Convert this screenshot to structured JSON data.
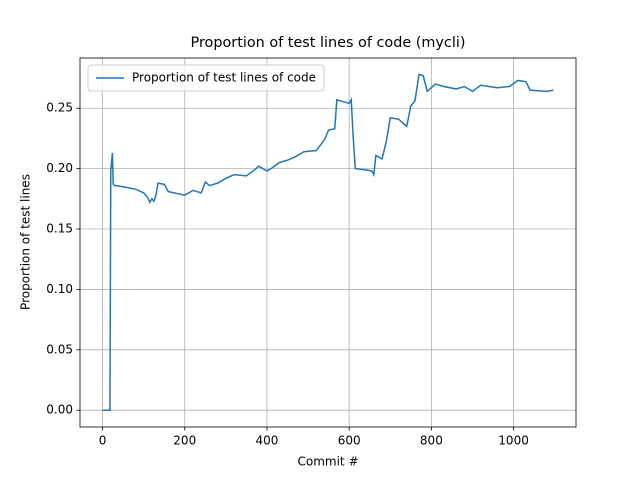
{
  "chart_data": {
    "type": "line",
    "title": "Proportion of test lines of code (mycli)",
    "x_label": "Commit #",
    "y_label": "Proportion of test lines",
    "x": [
      0,
      18,
      20,
      24,
      26,
      30,
      50,
      80,
      100,
      110,
      115,
      120,
      125,
      130,
      135,
      150,
      160,
      200,
      220,
      240,
      250,
      260,
      280,
      300,
      320,
      350,
      370,
      380,
      395,
      400,
      410,
      430,
      450,
      470,
      490,
      520,
      540,
      550,
      565,
      570,
      590,
      600,
      605,
      610,
      615,
      640,
      655,
      660,
      665,
      680,
      690,
      700,
      720,
      740,
      750,
      760,
      770,
      780,
      790,
      800,
      810,
      830,
      860,
      880,
      900,
      920,
      940,
      960,
      990,
      1010,
      1030,
      1040,
      1080,
      1097
    ],
    "series": [
      {
        "name": "Proportion of test lines of code",
        "color": "#1f77b4",
        "values": [
          0,
          0,
          0.198,
          0.213,
          0.187,
          0.186,
          0.185,
          0.183,
          0.18,
          0.176,
          0.172,
          0.175,
          0.173,
          0.178,
          0.188,
          0.187,
          0.181,
          0.178,
          0.182,
          0.18,
          0.189,
          0.186,
          0.188,
          0.192,
          0.195,
          0.194,
          0.199,
          0.202,
          0.199,
          0.198,
          0.2,
          0.205,
          0.207,
          0.21,
          0.214,
          0.215,
          0.224,
          0.232,
          0.233,
          0.257,
          0.255,
          0.254,
          0.257,
          0.225,
          0.2,
          0.199,
          0.198,
          0.195,
          0.211,
          0.208,
          0.222,
          0.242,
          0.241,
          0.235,
          0.252,
          0.256,
          0.278,
          0.277,
          0.264,
          0.267,
          0.27,
          0.268,
          0.266,
          0.268,
          0.264,
          0.269,
          0.268,
          0.267,
          0.268,
          0.273,
          0.272,
          0.265,
          0.264,
          0.265
        ]
      }
    ],
    "xlim": [
      -54.85,
      1151.85
    ],
    "ylim": [
      -0.0139,
      0.2916
    ],
    "xticks": [
      0,
      200,
      400,
      600,
      800,
      1000
    ],
    "yticks": [
      {
        "value": 0,
        "label": "0.00"
      },
      {
        "value": 0.05,
        "label": "0.05"
      },
      {
        "value": 0.1,
        "label": "0.10"
      },
      {
        "value": 0.15,
        "label": "0.15"
      },
      {
        "value": 0.2,
        "label": "0.20"
      },
      {
        "value": 0.25,
        "label": "0.25"
      }
    ],
    "grid": true,
    "legend": "upper left"
  }
}
